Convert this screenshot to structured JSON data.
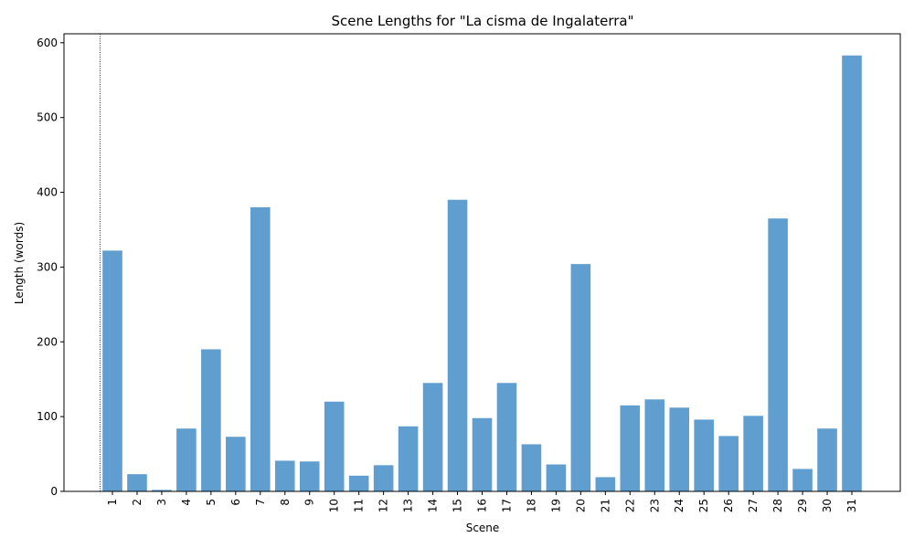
{
  "chart_data": {
    "type": "bar",
    "title": "Scene Lengths for \"La cisma de Ingalaterra\"",
    "xlabel": "Scene",
    "ylabel": "Length (words)",
    "categories": [
      "1",
      "2",
      "3",
      "4",
      "5",
      "6",
      "7",
      "8",
      "9",
      "10",
      "11",
      "12",
      "13",
      "14",
      "15",
      "16",
      "17",
      "18",
      "19",
      "20",
      "21",
      "22",
      "23",
      "24",
      "25",
      "26",
      "27",
      "28",
      "29",
      "30",
      "31"
    ],
    "values": [
      322,
      23,
      2,
      84,
      190,
      73,
      380,
      41,
      40,
      120,
      21,
      35,
      87,
      145,
      390,
      98,
      145,
      63,
      36,
      304,
      19,
      115,
      123,
      112,
      96,
      74,
      101,
      365,
      30,
      84,
      583
    ],
    "yticks": [
      0,
      100,
      200,
      300,
      400,
      500,
      600
    ],
    "ylim": [
      0,
      612
    ],
    "bar_color": "#5f9ecf",
    "vline_at_category": "1",
    "grid": false
  }
}
